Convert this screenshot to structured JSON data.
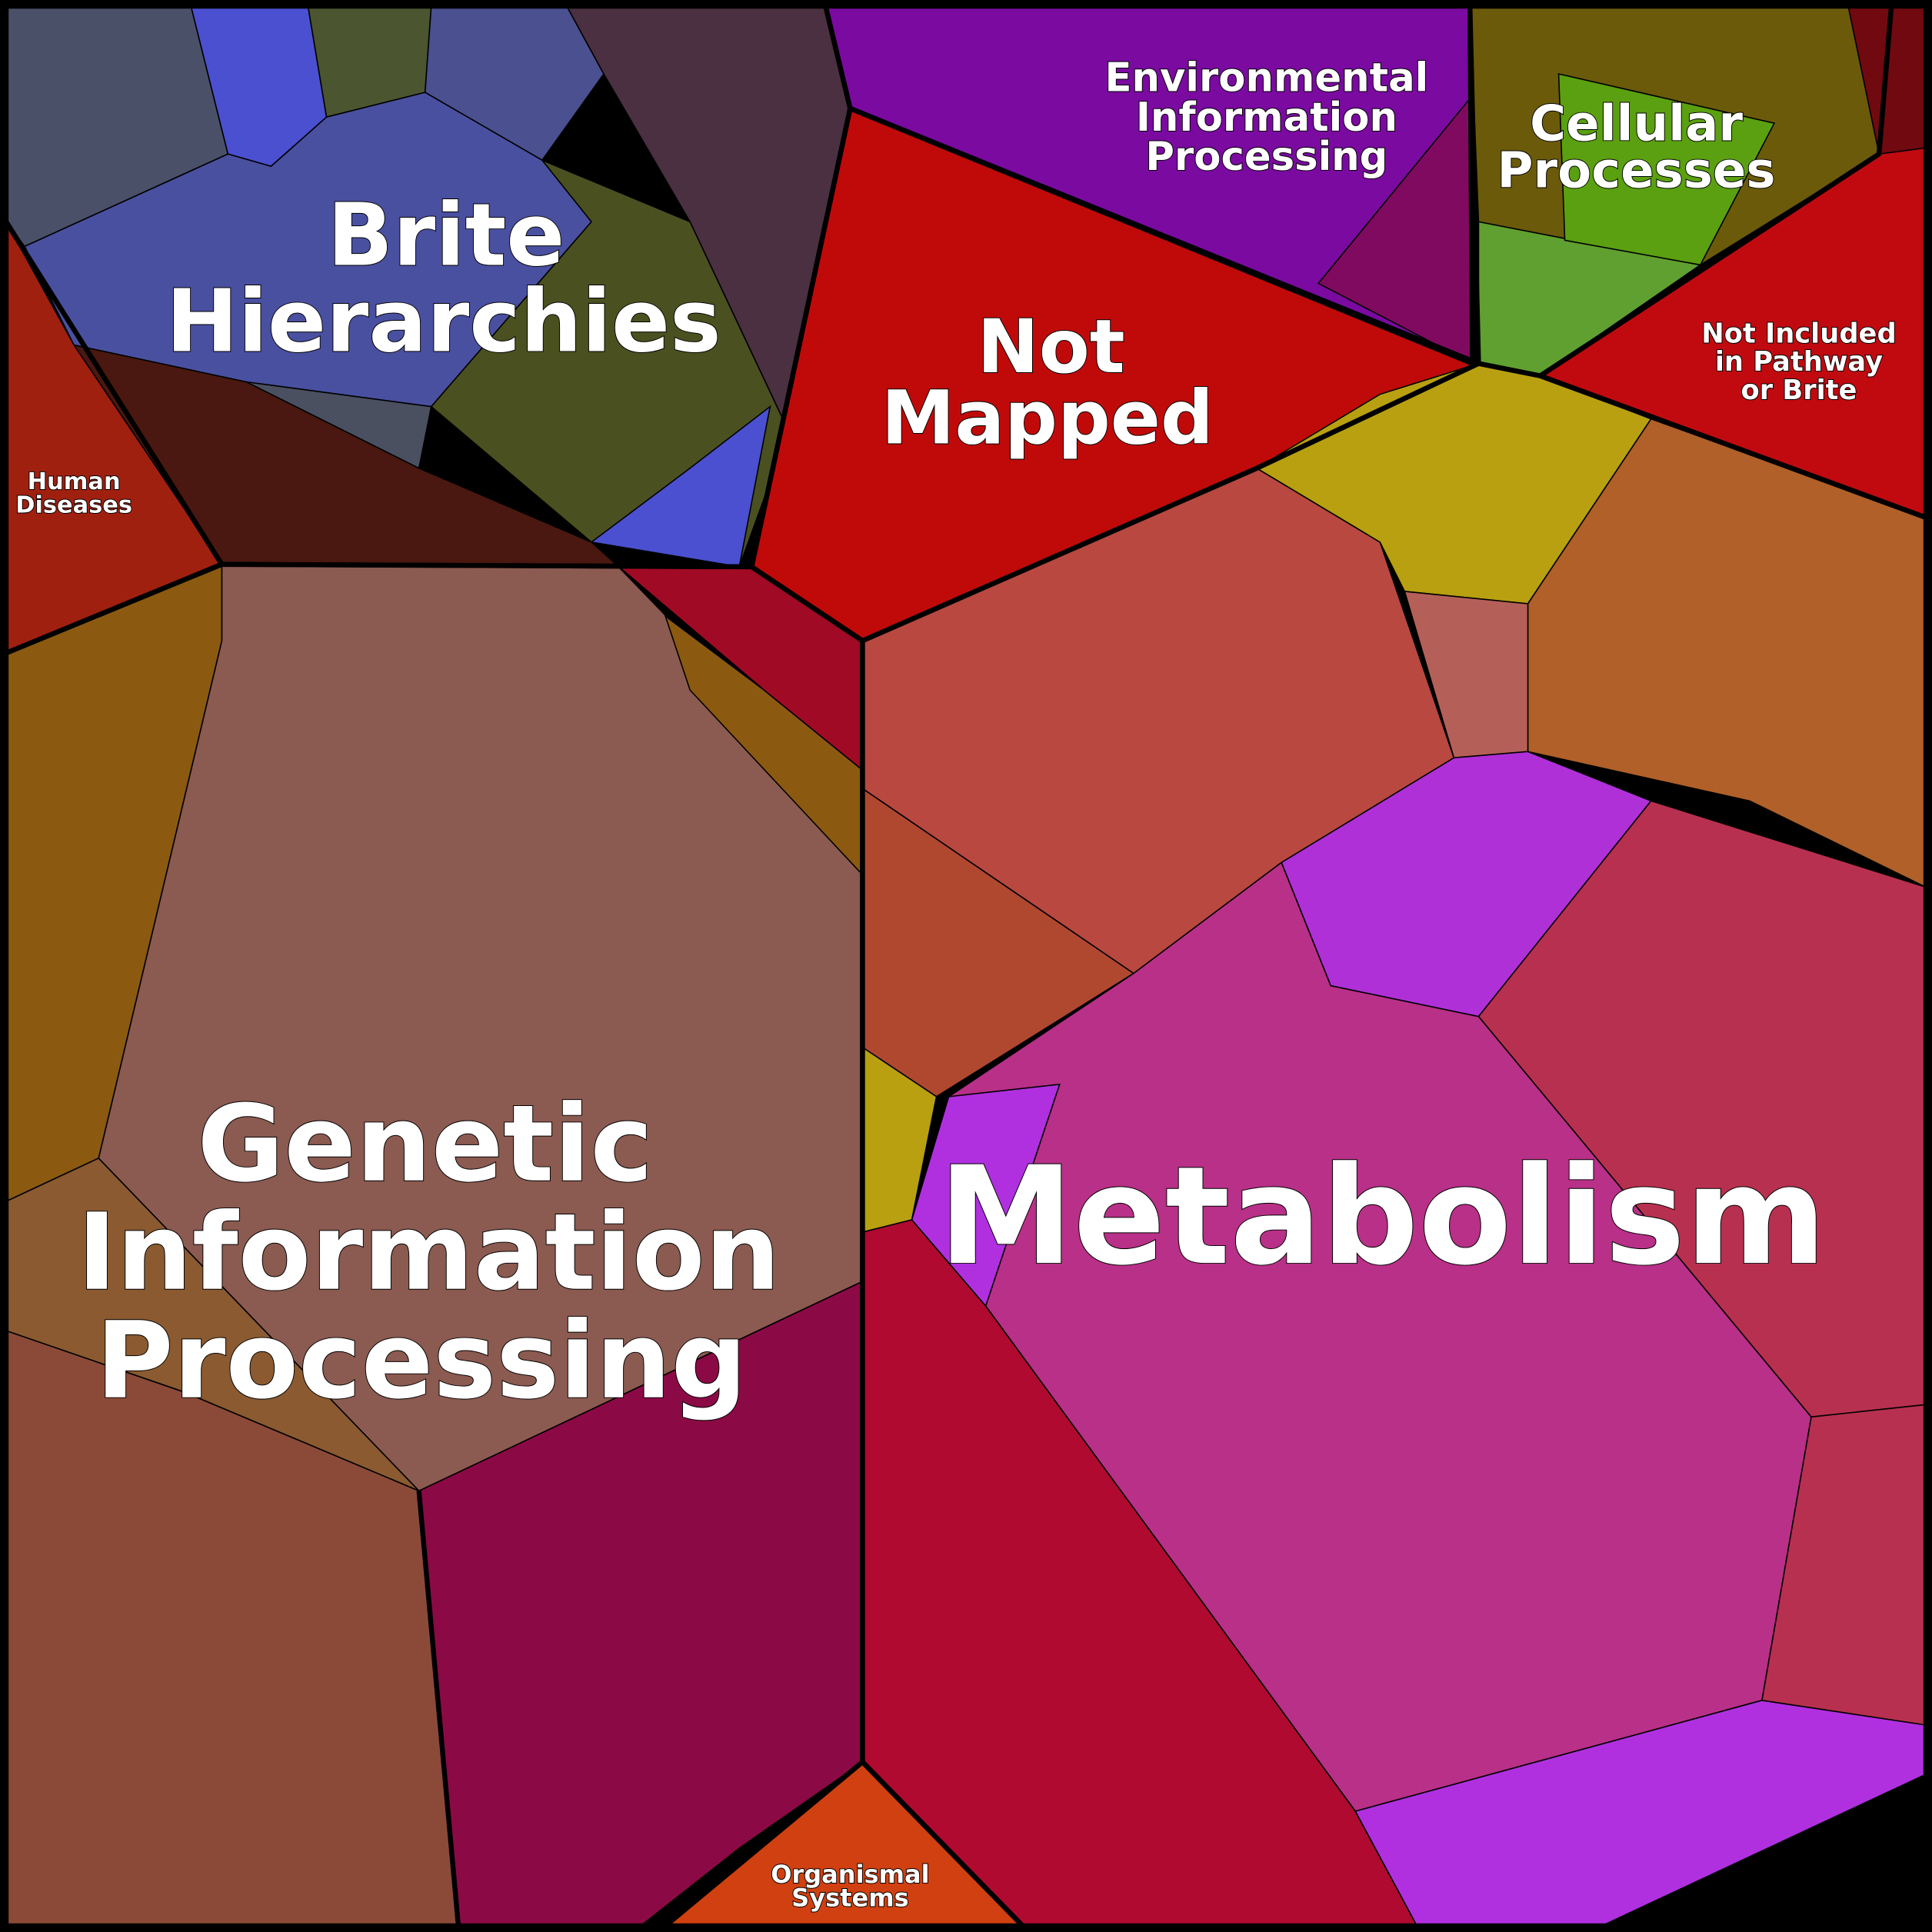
{
  "diagram": {
    "type": "voronoi-treemap",
    "categories": [
      {
        "key": "brite",
        "label_lines": [
          "Brite",
          "Hierarchies"
        ],
        "color": "#4a50a0"
      },
      {
        "key": "human",
        "label_lines": [
          "Human",
          "Diseases"
        ],
        "color": "#a02010"
      },
      {
        "key": "genetic",
        "label_lines": [
          "Genetic",
          "Information",
          "Processing"
        ],
        "color": "#8b5a50"
      },
      {
        "key": "notmapped",
        "label_lines": [
          "Not",
          "Mapped"
        ],
        "color": "#c00a0a"
      },
      {
        "key": "env",
        "label_lines": [
          "Environmental",
          "Information",
          "Processing"
        ],
        "color": "#7a0aa0"
      },
      {
        "key": "cellular",
        "label_lines": [
          "Cellular",
          "Processes"
        ],
        "color": "#6a5a0a"
      },
      {
        "key": "notincluded",
        "label_lines": [
          "Not Included",
          "in Pathway",
          "or Brite"
        ],
        "color": "#c00a10"
      },
      {
        "key": "metabolism",
        "label_lines": [
          "Metabolism"
        ],
        "color": "#b83088"
      },
      {
        "key": "organismal",
        "label_lines": [
          "Organismal",
          "Systems"
        ],
        "color": "#d04010"
      }
    ],
    "border_color": "#000000"
  }
}
